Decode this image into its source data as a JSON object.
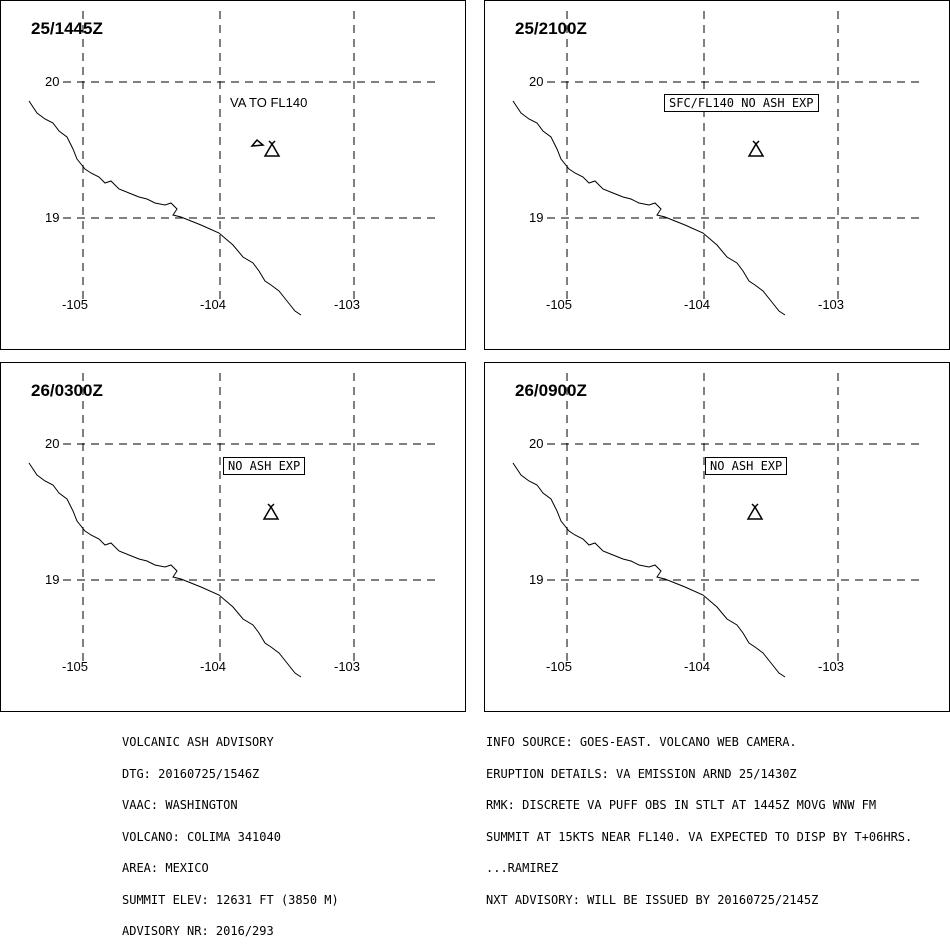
{
  "panels": [
    {
      "time": "25/1445Z",
      "lat_labels": [
        "20",
        "19"
      ],
      "lon_labels": [
        "-105",
        "-104",
        "-103"
      ],
      "label": "VA TO FL140",
      "label_boxed": false
    },
    {
      "time": "25/2100Z",
      "lat_labels": [
        "20",
        "19"
      ],
      "lon_labels": [
        "-105",
        "-104",
        "-103"
      ],
      "label": "SFC/FL140 NO ASH EXP",
      "label_boxed": true
    },
    {
      "time": "26/0300Z",
      "lat_labels": [
        "20",
        "19"
      ],
      "lon_labels": [
        "-105",
        "-104",
        "-103"
      ],
      "label": "NO ASH EXP",
      "label_boxed": true
    },
    {
      "time": "26/0900Z",
      "lat_labels": [
        "20",
        "19"
      ],
      "lon_labels": [
        "-105",
        "-104",
        "-103"
      ],
      "label": "NO ASH EXP",
      "label_boxed": true
    }
  ],
  "advisory": {
    "lines": [
      "VOLCANIC ASH ADVISORY",
      "DTG: 20160725/1546Z",
      "VAAC: WASHINGTON",
      "VOLCANO: COLIMA 341040",
      "AREA: MEXICO",
      "SUMMIT ELEV: 12631 FT (3850 M)",
      "ADVISORY NR: 2016/293"
    ]
  },
  "remarks": {
    "lines": [
      "INFO SOURCE: GOES-EAST. VOLCANO WEB CAMERA.",
      "ERUPTION DETAILS: VA EMISSION ARND 25/1430Z",
      "RMK: DISCRETE VA PUFF OBS IN STLT AT 1445Z MOVG WNW FM",
      "SUMMIT AT 15KTS NEAR FL140. VA EXPECTED TO DISP BY T+06HRS.",
      "...RAMIREZ",
      "NXT ADVISORY: WILL BE ISSUED BY 20160725/2145Z"
    ]
  },
  "icons": {
    "volcano": "volcano-icon",
    "ash_puff": "ash-puff-icon"
  },
  "colors": {
    "line": "#000000",
    "background": "#ffffff"
  }
}
